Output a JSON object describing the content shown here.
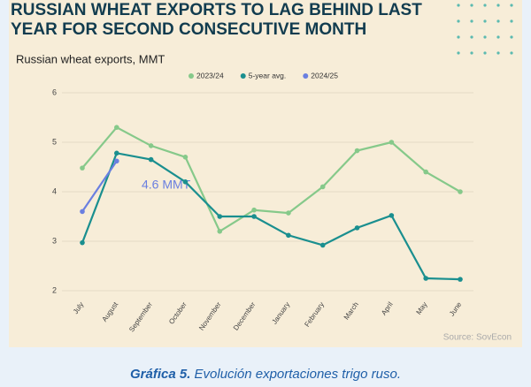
{
  "chart_data": {
    "type": "line",
    "title_lines": [
      "RUSSIAN WHEAT EXPORTS TO LAG BEHIND LAST",
      "YEAR FOR SECOND CONSECUTIVE MONTH"
    ],
    "subtitle": "Russian wheat exports, MMT",
    "categories": [
      "July",
      "August",
      "September",
      "October",
      "November",
      "December",
      "January",
      "February",
      "March",
      "April",
      "May",
      "June"
    ],
    "series": [
      {
        "name": "2023/24",
        "color": "#86c98a",
        "values": [
          4.48,
          5.3,
          4.93,
          4.7,
          3.2,
          3.63,
          3.57,
          4.1,
          4.83,
          5.0,
          4.4,
          4.0
        ]
      },
      {
        "name": "5-year avg.",
        "color": "#1a8f8f",
        "values": [
          2.97,
          4.78,
          4.65,
          4.2,
          3.5,
          3.5,
          3.12,
          2.92,
          3.27,
          3.52,
          2.25,
          2.23
        ]
      },
      {
        "name": "2024/25",
        "color": "#6a7fe0",
        "values": [
          3.6,
          4.62,
          null,
          null,
          null,
          null,
          null,
          null,
          null,
          null,
          null,
          null
        ]
      }
    ],
    "ylim": [
      2,
      6
    ],
    "yticks": [
      2,
      3,
      4,
      5,
      6
    ],
    "grid": true,
    "legend": "top",
    "annotation": "4.6 MMT",
    "source": "Source: SovEcon"
  },
  "caption": {
    "label": "Gráfica 5.",
    "text": "Evolución exportaciones trigo ruso."
  }
}
